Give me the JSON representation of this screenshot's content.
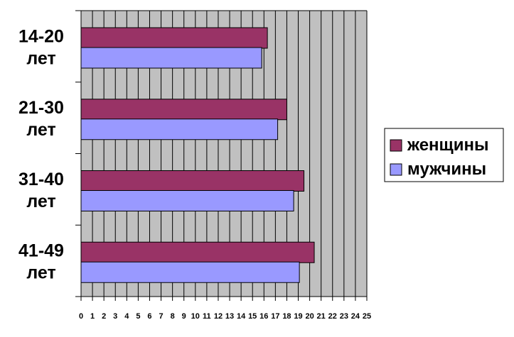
{
  "chart_data": {
    "type": "bar",
    "orientation": "horizontal",
    "categories": [
      [
        "14-20",
        "лет"
      ],
      [
        "21-30",
        "лет"
      ],
      [
        "31-40",
        "лет"
      ],
      [
        "41-49",
        "лет"
      ]
    ],
    "series": [
      {
        "name": "женщины",
        "color": "#993366",
        "values": [
          16.3,
          18,
          19.5,
          20.4
        ]
      },
      {
        "name": "мужчины",
        "color": "#9999ff",
        "values": [
          15.8,
          17.2,
          18.6,
          19.1
        ]
      }
    ],
    "xlim": [
      0,
      25
    ],
    "xticks": [
      "0",
      "1",
      "2",
      "3",
      "4",
      "5",
      "6",
      "7",
      "8",
      "9",
      "10",
      "11",
      "12",
      "13",
      "14",
      "15",
      "16",
      "17",
      "18",
      "19",
      "20",
      "21",
      "22",
      "23",
      "24",
      "25"
    ],
    "grid": true,
    "plot_background": "#c0c0c0",
    "legend_position": "right"
  }
}
